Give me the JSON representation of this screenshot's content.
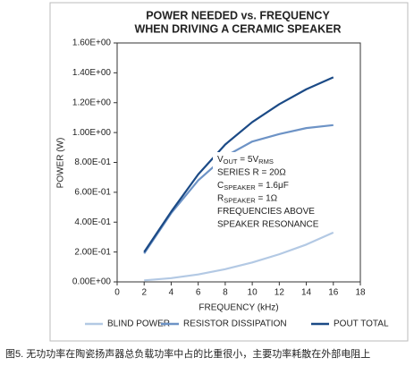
{
  "chart_data": {
    "type": "line",
    "title": [
      "POWER NEEDED vs. FREQUENCY",
      "WHEN DRIVING A CERAMIC SPEAKER"
    ],
    "x_label": "FREQUENCY (kHz)",
    "y_label": "POWER (W)",
    "x": [
      2,
      4,
      6,
      8,
      10,
      12,
      14,
      16
    ],
    "series": [
      {
        "name": "BLIND POWER",
        "color": "#b3c9e4",
        "values": [
          0.01,
          0.025,
          0.05,
          0.085,
          0.13,
          0.185,
          0.25,
          0.33
        ]
      },
      {
        "name": "RESISTOR DISSIPATION",
        "color": "#6d93c6",
        "values": [
          0.19,
          0.46,
          0.68,
          0.84,
          0.94,
          0.99,
          1.03,
          1.05
        ]
      },
      {
        "name": "POUT TOTAL",
        "color": "#1b4a86",
        "values": [
          0.2,
          0.47,
          0.72,
          0.92,
          1.07,
          1.19,
          1.29,
          1.37
        ]
      }
    ],
    "xlim": [
      0,
      18
    ],
    "xticks": [
      0,
      2,
      4,
      6,
      8,
      10,
      12,
      14,
      16,
      18
    ],
    "ylim": [
      0,
      1.6
    ],
    "yticks": [
      {
        "value": 0,
        "label": "0.00E+00"
      },
      {
        "value": 0.2,
        "label": "2.00E-01"
      },
      {
        "value": 0.4,
        "label": "4.00E-01"
      },
      {
        "value": 0.6,
        "label": "6.00E-01"
      },
      {
        "value": 0.8,
        "label": "8.00E-01"
      },
      {
        "value": 1.0,
        "label": "1.00E+00"
      },
      {
        "value": 1.2,
        "label": "1.20E+00"
      },
      {
        "value": 1.4,
        "label": "1.40E+00"
      },
      {
        "value": 1.6,
        "label": "1.60E+00"
      }
    ],
    "annotation": [
      [
        "V",
        "OUT",
        " = 5V",
        "RMS"
      ],
      [
        "SERIES R = 20Ω"
      ],
      [
        "C",
        "SPEAKER",
        " = 1.6μF"
      ],
      [
        "R",
        "SPEAKER",
        " = 1Ω"
      ],
      [
        "FREQUENCIES ABOVE"
      ],
      [
        "SPEAKER RESONANCE"
      ]
    ],
    "caption": "图5. 无功功率在陶瓷扬声器总负载功率中占的比重很小，主要功率耗散在外部电阻上"
  }
}
